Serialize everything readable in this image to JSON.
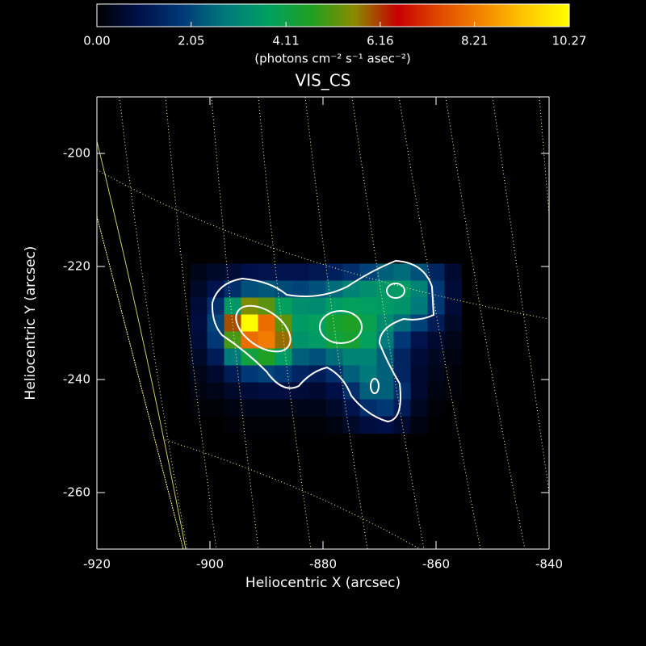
{
  "chart_data": {
    "type": "heatmap",
    "title": "VIS_CS",
    "xlabel": "Heliocentric X (arcsec)",
    "ylabel": "Heliocentric Y (arcsec)",
    "colorbar_label": "(photons cm⁻² s⁻¹ asec⁻²)",
    "xlim": [
      -920,
      -840
    ],
    "ylim": [
      -270,
      -190
    ],
    "xticks": [
      -920,
      -900,
      -880,
      -860,
      -840
    ],
    "yticks": [
      -200,
      -220,
      -240,
      -260
    ],
    "clim": [
      0,
      10.27
    ],
    "cticks": [
      {
        "value": 0,
        "label": "0.00"
      },
      2.05,
      4.11,
      6.16,
      8.21,
      10.27
    ],
    "colormap": [
      "#000000",
      "#00104a",
      "#003a78",
      "#007a7a",
      "#00a060",
      "#20a020",
      "#8a8a00",
      "#c80000",
      "#e04a00",
      "#f48800",
      "#ffc800",
      "#ffff00"
    ],
    "x": [
      -902,
      -899,
      -896,
      -893,
      -890,
      -887,
      -884,
      -881,
      -878,
      -875,
      -872,
      -869,
      -866,
      -863,
      -860,
      -857
    ],
    "y": [
      -221,
      -224,
      -227,
      -230,
      -233,
      -236,
      -239,
      -242,
      -245,
      -248
    ],
    "values": [
      [
        0.3,
        0.5,
        0.7,
        0.9,
        1.0,
        1.0,
        1.0,
        1.1,
        1.3,
        1.6,
        2.0,
        2.4,
        2.6,
        2.2,
        1.4,
        0.6
      ],
      [
        0.5,
        1.0,
        1.6,
        2.2,
        2.3,
        2.1,
        2.0,
        2.2,
        2.6,
        3.0,
        3.3,
        3.5,
        3.6,
        3.0,
        1.8,
        0.7
      ],
      [
        0.7,
        1.6,
        3.5,
        5.5,
        5.2,
        3.8,
        3.3,
        3.2,
        3.6,
        3.8,
        3.7,
        3.6,
        3.4,
        2.8,
        1.8,
        0.7
      ],
      [
        0.8,
        2.0,
        6.0,
        10.2,
        8.0,
        5.2,
        3.6,
        3.8,
        4.4,
        4.6,
        4.0,
        3.2,
        2.6,
        2.0,
        1.2,
        0.5
      ],
      [
        0.7,
        1.8,
        5.0,
        8.0,
        8.2,
        5.8,
        3.4,
        3.6,
        4.2,
        4.4,
        3.8,
        2.8,
        1.8,
        1.0,
        0.6,
        0.3
      ],
      [
        0.5,
        1.2,
        2.8,
        4.2,
        4.6,
        3.6,
        2.4,
        2.2,
        2.6,
        3.0,
        3.0,
        2.4,
        1.4,
        0.7,
        0.4,
        0.2
      ],
      [
        0.3,
        0.6,
        1.2,
        1.8,
        2.0,
        1.8,
        1.4,
        1.2,
        1.6,
        2.4,
        2.8,
        2.4,
        1.4,
        0.6,
        0.3,
        0.1
      ],
      [
        0.2,
        0.3,
        0.5,
        0.7,
        0.8,
        0.8,
        0.7,
        0.6,
        0.9,
        1.6,
        2.4,
        2.4,
        1.6,
        0.6,
        0.2,
        0.1
      ],
      [
        0.1,
        0.1,
        0.2,
        0.3,
        0.3,
        0.3,
        0.3,
        0.3,
        0.5,
        1.0,
        1.6,
        1.8,
        1.2,
        0.4,
        0.1,
        0.0
      ],
      [
        0.0,
        0.0,
        0.1,
        0.1,
        0.1,
        0.1,
        0.1,
        0.1,
        0.2,
        0.5,
        0.8,
        0.9,
        0.6,
        0.2,
        0.0,
        0.0
      ]
    ]
  }
}
